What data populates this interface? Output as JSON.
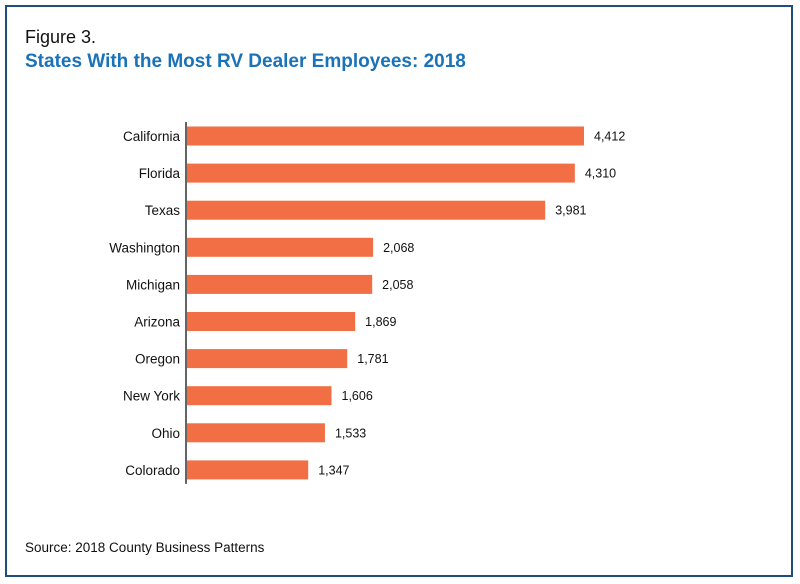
{
  "figure": {
    "label": "Figure 3.",
    "title": "States With the Most RV Dealer Employees: 2018",
    "source": "Source: 2018 County Business Patterns"
  },
  "colors": {
    "bar": "#f26f45",
    "title": "#1a72b8",
    "frame": "#1f4e79",
    "axis": "#111111"
  },
  "chart_data": {
    "type": "bar",
    "orientation": "horizontal",
    "categories": [
      "California",
      "Florida",
      "Texas",
      "Washington",
      "Michigan",
      "Arizona",
      "Oregon",
      "New York",
      "Ohio",
      "Colorado"
    ],
    "values": [
      4412,
      4310,
      3981,
      2068,
      2058,
      1869,
      1781,
      1606,
      1533,
      1347
    ],
    "value_labels": [
      "4,412",
      "4,310",
      "3,981",
      "2,068",
      "2,058",
      "1,869",
      "1,781",
      "1,606",
      "1,533",
      "1,347"
    ],
    "title": "States With the Most RV Dealer Employees: 2018",
    "xlabel": "",
    "ylabel": "",
    "xlim": [
      0,
      4412
    ],
    "grid": false,
    "legend": "none"
  }
}
